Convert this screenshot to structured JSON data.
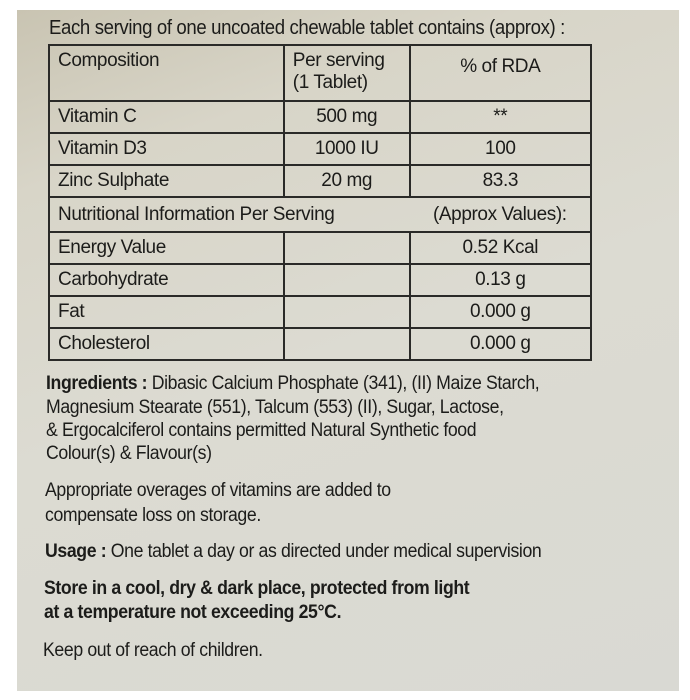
{
  "intro": "Each serving of one uncoated chewable tablet contains (approx) :",
  "composition_table": {
    "headers": [
      "Composition",
      "Per serving",
      "(1 Tablet)",
      "% of RDA"
    ],
    "rows": [
      {
        "name": "Vitamin C",
        "per_serving": "500 mg",
        "rda": "**"
      },
      {
        "name": "Vitamin D3",
        "per_serving": "1000 IU",
        "rda": "100"
      },
      {
        "name": "Zinc Sulphate",
        "per_serving": "20 mg",
        "rda": "83.3"
      }
    ]
  },
  "nutrition_table": {
    "header_left": "Nutritional Information Per Serving",
    "header_right": "(Approx Values):",
    "rows": [
      {
        "name": "Energy Value",
        "value": "0.52 Kcal"
      },
      {
        "name": "Carbohydrate",
        "value": "0.13 g"
      },
      {
        "name": "Fat",
        "value": "0.000 g"
      },
      {
        "name": "Cholesterol",
        "value": "0.000 g"
      }
    ]
  },
  "ingredients": {
    "label": "Ingredients :",
    "lines": [
      " Dibasic Calcium Phosphate (341), (II) Maize Starch,",
      "Magnesium Stearate (551), Talcum (553) (II), Sugar, Lactose,",
      "& Ergocalciferol contains permitted Natural Synthetic food",
      "Colour(s) & Flavour(s)"
    ]
  },
  "overages": [
    "Appropriate overages of vitamins are added to",
    "compensate loss on storage."
  ],
  "usage": {
    "label": "Usage :",
    "text": " One tablet a day or as directed under medical supervision"
  },
  "storage": [
    "Store in a cool, dry & dark place, protected from light",
    "at a temperature not exceeding 25°C."
  ],
  "warning": "Keep out of reach of children."
}
